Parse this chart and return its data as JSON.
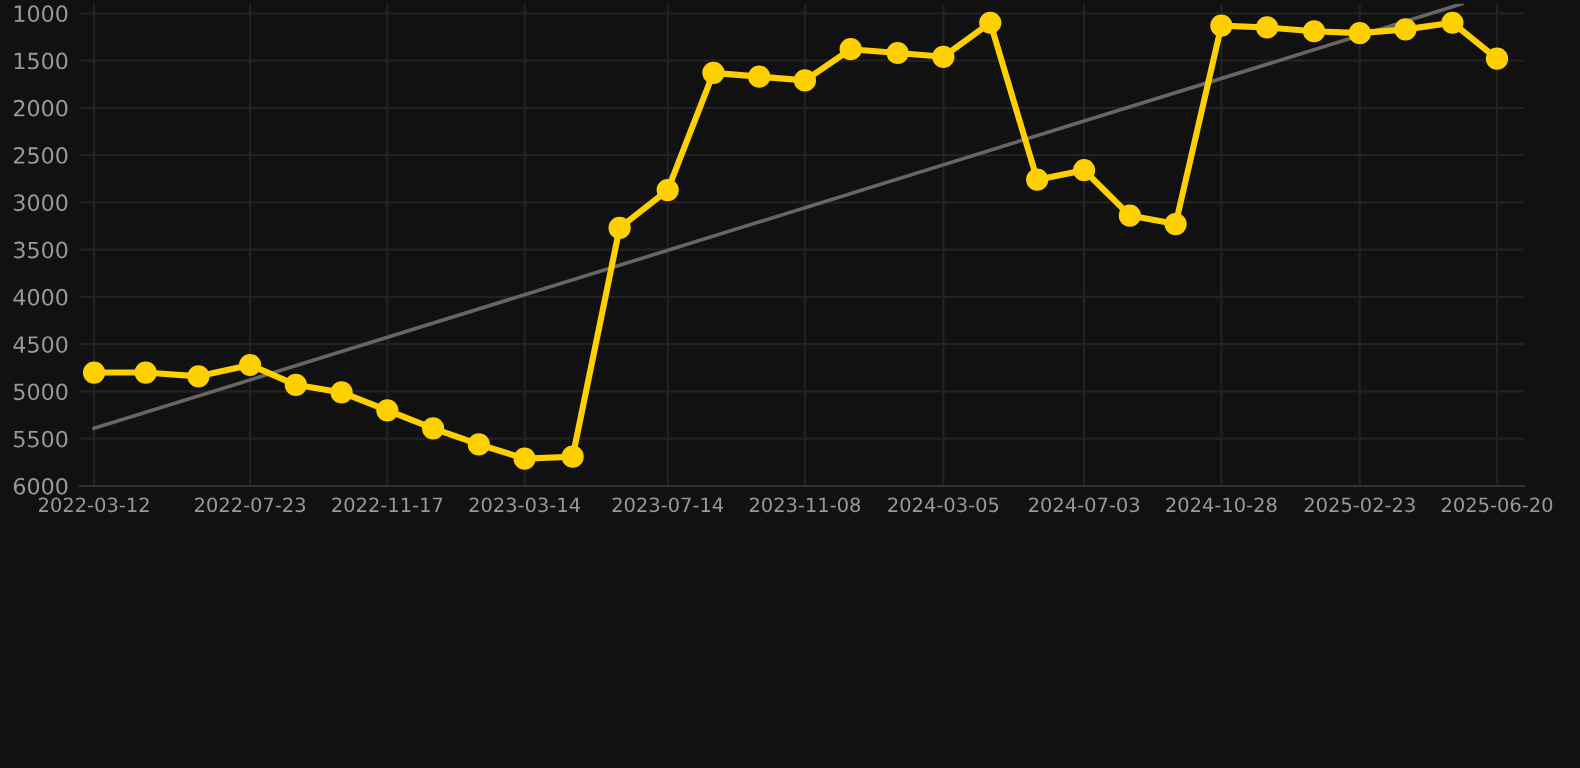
{
  "chart_data": {
    "type": "line",
    "x": [
      "2022-03-12",
      "2022-04-25",
      "2022-06-09",
      "2022-07-23",
      "2022-08-31",
      "2022-10-09",
      "2022-11-17",
      "2022-12-26",
      "2023-02-03",
      "2023-03-14",
      "2023-04-24",
      "2023-06-03",
      "2023-07-14",
      "2023-08-22",
      "2023-09-30",
      "2023-11-08",
      "2023-12-17",
      "2024-01-26",
      "2024-03-05",
      "2024-04-14",
      "2024-05-24",
      "2024-07-03",
      "2024-08-11",
      "2024-09-19",
      "2024-10-28",
      "2024-12-06",
      "2025-01-15",
      "2025-02-23",
      "2025-04-03",
      "2025-05-13",
      "2025-06-20"
    ],
    "series": [
      {
        "color": "#ffd000",
        "marker": "circle",
        "values": [
          4800,
          4800,
          4840,
          4720,
          4930,
          5010,
          5200,
          5390,
          5560,
          5710,
          5690,
          3270,
          2870,
          1630,
          1670,
          1710,
          1380,
          1420,
          1460,
          1100,
          2760,
          2660,
          3140,
          3230,
          1130,
          1150,
          1190,
          1210,
          1170,
          1100,
          1480
        ]
      },
      {
        "type": "line",
        "color": "#666666",
        "marker": "none",
        "x": [
          "2022-03-12",
          "2025-05-21"
        ],
        "values": [
          5390,
          900
        ]
      }
    ],
    "xlim": [
      "2022-02-28",
      "2025-07-13"
    ],
    "xticks": [
      "2022-03-12",
      "2022-07-23",
      "2022-11-17",
      "2023-03-14",
      "2023-07-14",
      "2023-11-08",
      "2024-03-05",
      "2024-07-03",
      "2024-10-28",
      "2025-02-23",
      "2025-06-20"
    ],
    "ylim": [
      6000,
      900
    ],
    "yticks": [
      1000,
      1500,
      2000,
      2500,
      3000,
      3500,
      4000,
      4500,
      5000,
      5500,
      6000
    ],
    "grid": true
  }
}
